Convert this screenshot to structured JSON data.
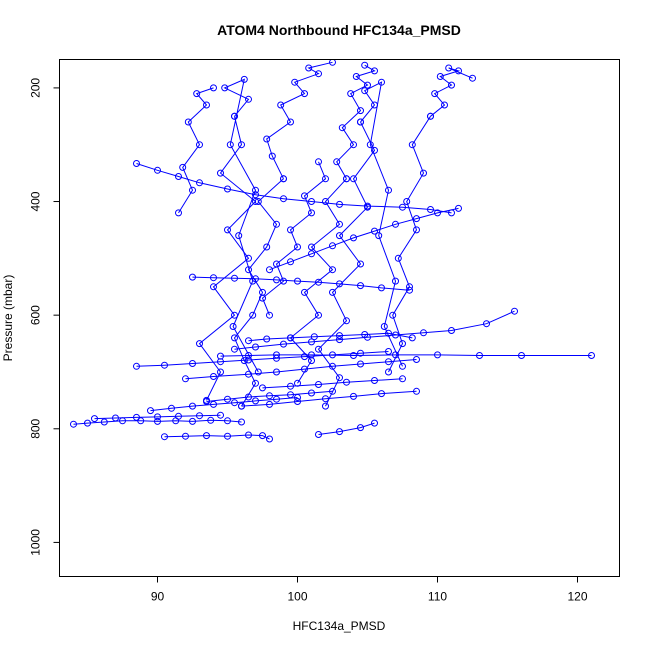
{
  "chart_data": {
    "type": "line",
    "title": "ATOM4 Northbound HFC134a_PMSD",
    "xlabel": "HFC134a_PMSD",
    "ylabel": "Pressure (mbar)",
    "xlim": [
      83,
      123
    ],
    "ylim": [
      1060,
      150
    ],
    "y_axis_inverted": true,
    "xticks": [
      90,
      100,
      110,
      120
    ],
    "yticks": [
      200,
      400,
      600,
      800,
      1000
    ],
    "grid": false,
    "legend": "none",
    "color": "#0000ff",
    "marker": "open-circle",
    "series": [
      {
        "x": [
          84.0,
          85.0,
          86.2,
          87.5,
          88.8,
          90.0,
          91.3,
          92.5,
          93.8,
          95.0,
          96.0
        ],
        "y": [
          792,
          790,
          788,
          786,
          786,
          787,
          786,
          787,
          785,
          786,
          788
        ]
      },
      {
        "x": [
          90.5,
          92.0,
          93.5,
          95.0,
          96.5,
          97.5,
          98.0
        ],
        "y": [
          814,
          813,
          812,
          813,
          811,
          812,
          818
        ]
      },
      {
        "x": [
          101.5,
          103.0,
          104.5,
          105.5
        ],
        "y": [
          810,
          805,
          798,
          790
        ]
      },
      {
        "x": [
          94.5,
          96.5,
          98.5,
          101.0,
          104.0,
          107.0,
          110.0,
          113.0,
          116.0,
          121.0
        ],
        "y": [
          672,
          671,
          670,
          670,
          671,
          670,
          670,
          671,
          671,
          671
        ]
      },
      {
        "x": [
          92.0,
          94.0,
          96.5,
          98.5,
          100.5,
          102.5,
          104.5,
          106.5,
          108.5
        ],
        "y": [
          712,
          708,
          704,
          700,
          695,
          690,
          686,
          682,
          678
        ]
      },
      {
        "x": [
          93.5,
          95.0,
          96.5,
          98.0,
          99.5,
          101.0,
          102.5
        ],
        "y": [
          752,
          748,
          744,
          742,
          740,
          737,
          734
        ]
      },
      {
        "x": [
          88.5,
          90.5,
          92.5,
          94.5,
          96.5,
          98.5,
          100.5,
          102.5,
          104.5,
          106.5
        ],
        "y": [
          690,
          688,
          685,
          682,
          679,
          676,
          673,
          670,
          667,
          664
        ]
      },
      {
        "x": [
          95.5,
          97.0,
          99.0,
          101.0,
          103.0,
          105.0,
          107.0,
          109.0,
          111.0,
          113.5,
          115.5
        ],
        "y": [
          660,
          656,
          651,
          647,
          643,
          639,
          635,
          631,
          627,
          615,
          593
        ]
      },
      {
        "x": [
          97.5,
          99.5,
          101.5,
          103.5,
          105.5,
          107.5
        ],
        "y": [
          728,
          725,
          722,
          718,
          715,
          712
        ]
      },
      {
        "x": [
          96.0,
          98.0,
          100.0,
          102.0,
          104.0,
          106.0,
          108.5
        ],
        "y": [
          760,
          757,
          752,
          747,
          743,
          738,
          734
        ]
      },
      {
        "x": [
          96.0,
          97.0,
          96.2,
          95.5,
          96.8,
          97.5,
          96.5,
          97.8,
          98.5,
          97.2,
          99.0
        ],
        "y": [
          760,
          720,
          680,
          640,
          600,
          560,
          520,
          480,
          440,
          400,
          360
        ]
      },
      {
        "x": [
          99.0,
          98.2,
          97.8,
          99.5,
          98.8,
          100.5,
          99.8,
          101.5,
          100.8,
          102.5
        ],
        "y": [
          360,
          320,
          290,
          260,
          230,
          210,
          190,
          175,
          165,
          155
        ]
      },
      {
        "x": [
          93.5,
          94.5,
          93.0,
          95.5,
          94.0,
          96.5,
          95.0,
          97.0,
          94.5,
          96.0,
          95.5
        ],
        "y": [
          750,
          700,
          650,
          600,
          550,
          500,
          450,
          400,
          350,
          300,
          250
        ]
      },
      {
        "x": [
          95.5,
          96.5,
          94.8,
          96.2,
          95.2,
          97.0,
          95.8,
          96.8,
          95.4,
          97.2
        ],
        "y": [
          250,
          220,
          200,
          185,
          300,
          380,
          460,
          540,
          620,
          700
        ]
      },
      {
        "x": [
          100.0,
          101.0,
          99.5,
          101.5,
          100.5,
          102.5,
          101.0,
          103.0,
          102.0,
          103.5
        ],
        "y": [
          720,
          680,
          640,
          600,
          560,
          520,
          480,
          440,
          400,
          360
        ]
      },
      {
        "x": [
          103.5,
          102.8,
          104.0,
          103.2,
          104.5,
          103.8,
          105.0,
          104.2,
          105.5,
          104.8
        ],
        "y": [
          360,
          330,
          300,
          270,
          240,
          210,
          195,
          180,
          170,
          160
        ]
      },
      {
        "x": [
          102.0,
          103.0,
          101.5,
          103.5,
          102.5,
          104.5,
          103.0,
          105.0,
          104.0,
          105.5,
          104.5
        ],
        "y": [
          760,
          710,
          660,
          610,
          560,
          510,
          460,
          410,
          360,
          310,
          260
        ]
      },
      {
        "x": [
          104.5,
          105.5,
          104.8,
          106.0,
          105.2,
          106.5,
          105.8,
          107.0,
          106.2,
          107.5
        ],
        "y": [
          260,
          230,
          205,
          190,
          300,
          380,
          460,
          540,
          620,
          690
        ]
      },
      {
        "x": [
          106.5,
          107.5,
          106.8,
          108.0,
          107.2,
          108.5,
          107.8,
          109.0,
          108.2,
          109.5
        ],
        "y": [
          700,
          650,
          600,
          550,
          500,
          450,
          400,
          350,
          300,
          250
        ]
      },
      {
        "x": [
          109.5,
          110.5,
          109.8,
          111.0,
          110.2,
          111.5,
          110.8,
          112.5
        ],
        "y": [
          250,
          230,
          210,
          195,
          180,
          170,
          165,
          183
        ]
      },
      {
        "x": [
          91.5,
          92.5,
          91.8,
          93.0,
          92.2,
          93.5,
          92.8,
          94.0
        ],
        "y": [
          420,
          380,
          340,
          300,
          260,
          230,
          210,
          200
        ]
      },
      {
        "x": [
          88.5,
          90.0,
          91.5,
          93.0,
          95.0,
          97.0,
          99.0,
          101.0,
          103.0,
          105.0,
          107.5,
          109.5,
          111.0
        ],
        "y": [
          333,
          345,
          356,
          367,
          378,
          388,
          395,
          400,
          405,
          408,
          410,
          414,
          420
        ]
      },
      {
        "x": [
          111.5,
          110.0,
          108.5,
          107.0,
          105.5,
          104.0,
          102.5,
          101.0,
          99.5,
          98.0
        ],
        "y": [
          412,
          420,
          430,
          440,
          452,
          464,
          478,
          492,
          506,
          520
        ]
      },
      {
        "x": [
          92.5,
          94.0,
          95.5,
          97.0,
          98.5,
          100.0,
          101.5,
          103.0,
          104.5,
          106.0,
          108.0
        ],
        "y": [
          533,
          534,
          535,
          536,
          538,
          540,
          542,
          545,
          548,
          552,
          556
        ]
      },
      {
        "x": [
          98.0,
          97.5,
          99.0,
          98.5,
          100.0,
          99.5,
          101.0,
          100.5,
          102.0,
          101.5
        ],
        "y": [
          600,
          570,
          540,
          510,
          480,
          450,
          420,
          390,
          360,
          330
        ]
      },
      {
        "x": [
          96.5,
          97.8,
          99.5,
          101.2,
          103.0,
          104.8,
          106.5,
          108.2
        ],
        "y": [
          645,
          642,
          640,
          638,
          636,
          634,
          632,
          640
        ]
      },
      {
        "x": [
          85.5,
          87.0,
          88.5,
          90.0,
          91.5,
          93.0,
          94.5
        ],
        "y": [
          782,
          781,
          780,
          779,
          778,
          777,
          776
        ]
      },
      {
        "x": [
          89.5,
          91.0,
          92.5,
          94.0,
          95.5,
          97.0,
          98.5,
          100.0
        ],
        "y": [
          768,
          764,
          760,
          757,
          754,
          751,
          748,
          745
        ]
      }
    ]
  }
}
